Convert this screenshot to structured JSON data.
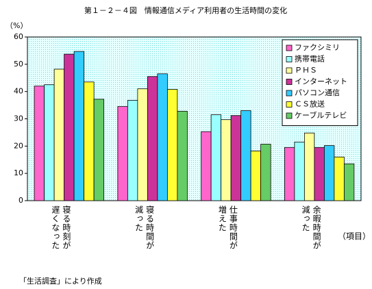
{
  "chart_data": {
    "type": "bar",
    "title": "第１－２－４図　情報通信メディア利用者の生活時間の変化",
    "y_label": "（%）",
    "x_label": "（項目）",
    "note": "「生活調査」により作成",
    "categories": [
      "寝る時刻が遅くなった",
      "寝る時間が減った",
      "仕事時間が増えた",
      "余暇時間が減った"
    ],
    "series": [
      {
        "name": "ファクシミリ",
        "color": "#ff66cc",
        "values": [
          42,
          34.5,
          25.3,
          19.5
        ]
      },
      {
        "name": "携帯電話",
        "color": "#99ffff",
        "values": [
          42.5,
          36.8,
          31.5,
          21.5
        ]
      },
      {
        "name": "ＰＨＳ",
        "color": "#ffff99",
        "values": [
          48.2,
          41,
          29.7,
          24.8
        ]
      },
      {
        "name": "インターネット",
        "color": "#cc3399",
        "values": [
          53.7,
          45.5,
          31.2,
          19.5
        ]
      },
      {
        "name": "パソコン通信",
        "color": "#33ccff",
        "values": [
          54.7,
          46.5,
          33,
          20.2
        ]
      },
      {
        "name": "ＣＳ放送",
        "color": "#ffff33",
        "values": [
          43.5,
          40.8,
          18.2,
          16
        ]
      },
      {
        "name": "ケーブルテレビ",
        "color": "#66cc66",
        "values": [
          37.2,
          32.8,
          20.7,
          13.5
        ]
      }
    ],
    "ylim": [
      0,
      60
    ],
    "yticks": [
      0,
      10,
      20,
      30,
      40,
      50,
      60
    ],
    "legend": "upper right"
  }
}
